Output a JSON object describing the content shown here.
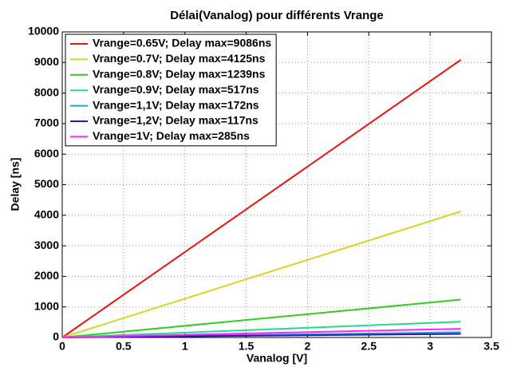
{
  "chart_data": {
    "type": "line",
    "title": "Délai(Vanalog) pour différents Vrange",
    "xlabel": "Vanalog [V]",
    "ylabel": "Delay [ns]",
    "x": [
      0,
      3.25
    ],
    "series": [
      {
        "name": "Vrange=0.65V; Delay max=9086ns",
        "color": "#ee1111",
        "values": [
          0,
          9086
        ]
      },
      {
        "name": "Vrange=0.7V; Delay max=4125ns",
        "color": "#d6d625",
        "values": [
          0,
          4125
        ]
      },
      {
        "name": "Vrange=0.8V; Delay max=1239ns",
        "color": "#33cc22",
        "values": [
          0,
          1239
        ]
      },
      {
        "name": "Vrange=0.9V; Delay max=517ns",
        "color": "#22dd88",
        "values": [
          0,
          517
        ]
      },
      {
        "name": "Vrange=1,1V; Delay max=172ns",
        "color": "#1aa8c8",
        "values": [
          0,
          172
        ]
      },
      {
        "name": "Vrange=1,2V; Delay max=117ns",
        "color": "#3311bb",
        "values": [
          0,
          117
        ]
      },
      {
        "name": "Vrange=1V; Delay max=285ns",
        "color": "#ff22ff",
        "values": [
          0,
          285
        ]
      }
    ],
    "xlim": [
      0,
      3.5
    ],
    "xticks": [
      0,
      0.5,
      1,
      1.5,
      2,
      2.5,
      3,
      3.5
    ],
    "ylim": [
      0,
      10000
    ],
    "yticks": [
      0,
      1000,
      2000,
      3000,
      4000,
      5000,
      6000,
      7000,
      8000,
      9000,
      10000
    ],
    "grid": true,
    "legend": "upper left"
  }
}
